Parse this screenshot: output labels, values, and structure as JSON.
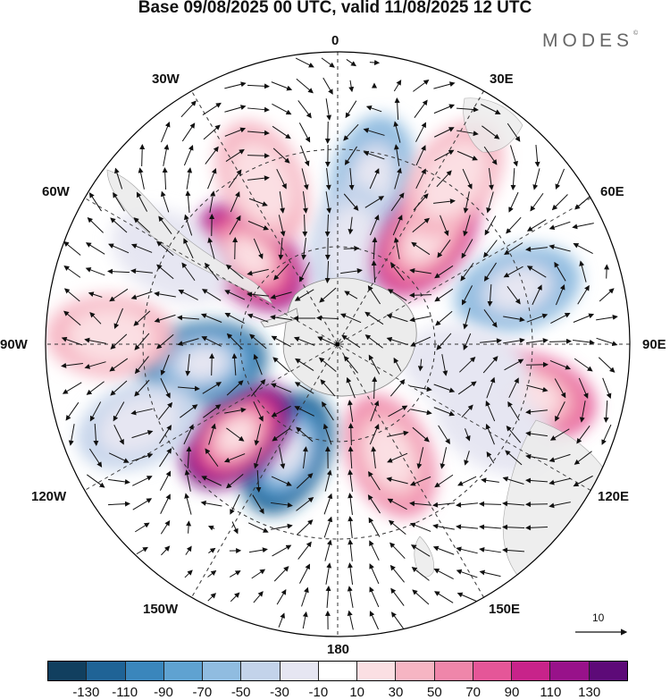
{
  "title": "Base 09/08/2025 00 UTC, valid 11/08/2025 12 UTC",
  "brand": "MODES",
  "brand_mark": "©",
  "longitude_labels": {
    "lon_0": "0",
    "lon_30e": "30E",
    "lon_60e": "60E",
    "lon_90e": "90E",
    "lon_120e": "120E",
    "lon_150e": "150E",
    "lon_180": "180",
    "lon_150w": "150W",
    "lon_120w": "120W",
    "lon_90w": "90W",
    "lon_60w": "60W",
    "lon_30w": "30W"
  },
  "colorbar": {
    "colors": [
      "#113f5f",
      "#1f6396",
      "#3a86bc",
      "#5fa2d1",
      "#90bce0",
      "#c3d3ea",
      "#e6e6f2",
      "#ffffff",
      "#fbdfe3",
      "#f6b5c3",
      "#ef86aa",
      "#e55698",
      "#c8238a",
      "#98128a",
      "#5d0a78"
    ],
    "ticks": [
      "-130",
      "-110",
      "-90",
      "-70",
      "-50",
      "-30",
      "-10",
      "10",
      "30",
      "50",
      "70",
      "90",
      "110",
      "130"
    ]
  },
  "reference_vector": {
    "label": "10"
  },
  "anomalies": [
    {
      "lon": 12,
      "colat": 52,
      "value": -70
    },
    {
      "lon": 8,
      "colat": 30,
      "value": -40
    },
    {
      "lon": 40,
      "colat": 42,
      "value": 90
    },
    {
      "lon": 35,
      "colat": 62,
      "value": 40
    },
    {
      "lon": 73,
      "colat": 58,
      "value": -70
    },
    {
      "lon": 105,
      "colat": 62,
      "value": 70
    },
    {
      "lon": 100,
      "colat": 40,
      "value": -20
    },
    {
      "lon": 155,
      "colat": 38,
      "value": 60
    },
    {
      "lon": 118,
      "colat": 55,
      "value": -20
    },
    {
      "lon": -155,
      "colat": 37,
      "value": -130
    },
    {
      "lon": -132,
      "colat": 42,
      "value": 130
    },
    {
      "lon": -98,
      "colat": 42,
      "value": -120
    },
    {
      "lon": -45,
      "colat": 38,
      "value": 110
    },
    {
      "lon": -25,
      "colat": 55,
      "value": 40
    },
    {
      "lon": -88,
      "colat": 70,
      "value": 30
    },
    {
      "lon": -112,
      "colat": 66,
      "value": -40
    },
    {
      "lon": -62,
      "colat": 58,
      "value": -20
    }
  ]
}
